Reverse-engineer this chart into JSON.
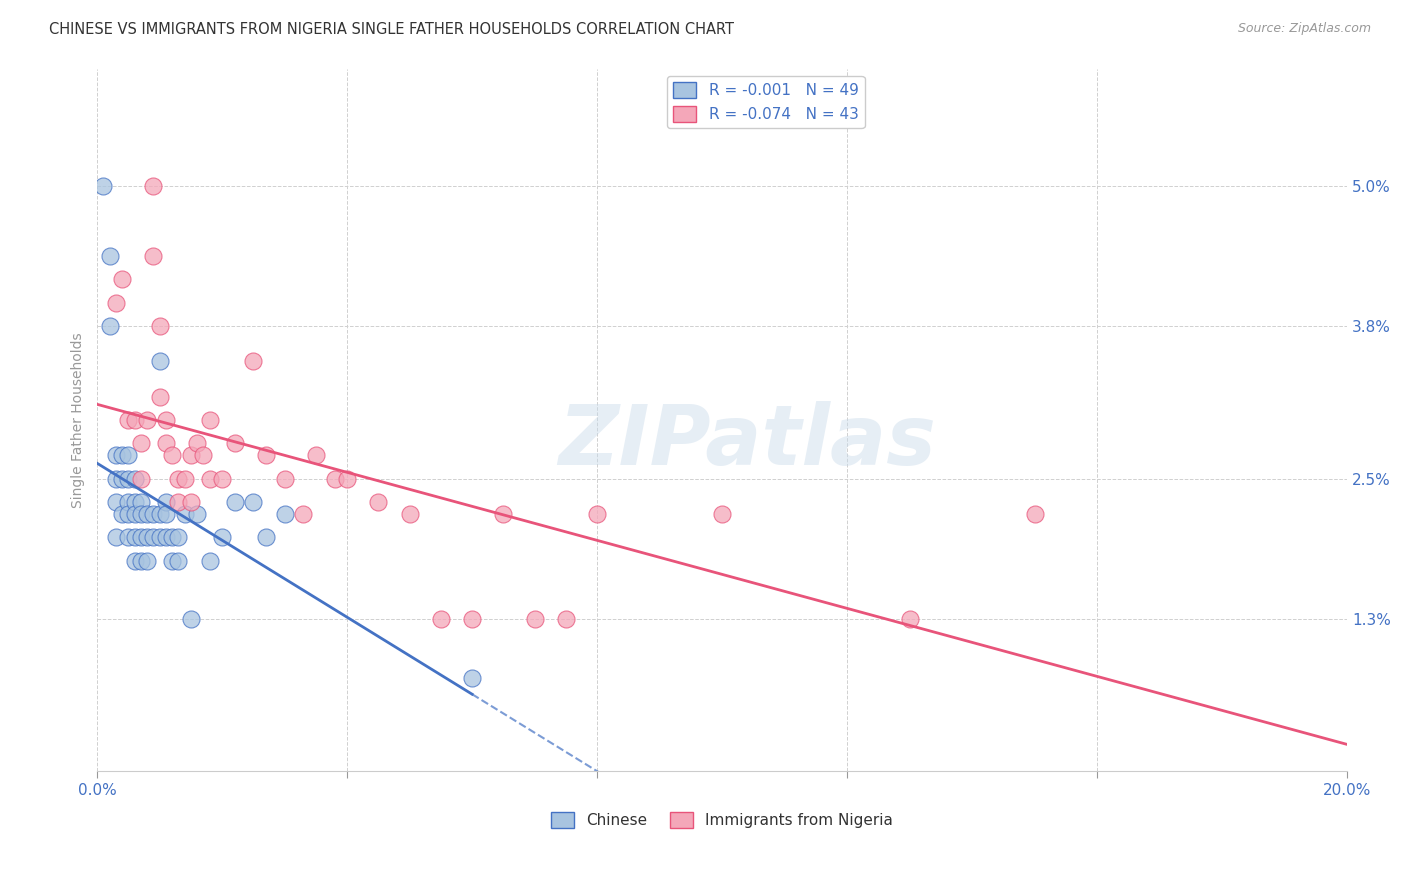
{
  "title": "CHINESE VS IMMIGRANTS FROM NIGERIA SINGLE FATHER HOUSEHOLDS CORRELATION CHART",
  "source": "Source: ZipAtlas.com",
  "ylabel": "Single Father Households",
  "legend_label1": "R = -0.001   N = 49",
  "legend_label2": "R = -0.074   N = 43",
  "legend_label_chinese": "Chinese",
  "legend_label_nigeria": "Immigrants from Nigeria",
  "xlim": [
    0.0,
    0.2
  ],
  "ylim": [
    0.0,
    0.06
  ],
  "color_chinese": "#a8c4e0",
  "color_nigeria": "#f4a7b9",
  "line_color_chinese": "#4472c4",
  "line_color_nigeria": "#e8547a",
  "watermark": "ZIPatlas",
  "chinese_x": [
    0.001,
    0.002,
    0.002,
    0.003,
    0.003,
    0.003,
    0.003,
    0.004,
    0.004,
    0.004,
    0.005,
    0.005,
    0.005,
    0.005,
    0.005,
    0.006,
    0.006,
    0.006,
    0.006,
    0.006,
    0.007,
    0.007,
    0.007,
    0.007,
    0.008,
    0.008,
    0.008,
    0.009,
    0.009,
    0.01,
    0.01,
    0.01,
    0.011,
    0.011,
    0.011,
    0.012,
    0.012,
    0.013,
    0.013,
    0.014,
    0.015,
    0.016,
    0.018,
    0.02,
    0.022,
    0.025,
    0.027,
    0.03,
    0.06
  ],
  "chinese_y": [
    0.05,
    0.044,
    0.038,
    0.027,
    0.025,
    0.023,
    0.02,
    0.027,
    0.025,
    0.022,
    0.027,
    0.025,
    0.023,
    0.022,
    0.02,
    0.025,
    0.023,
    0.022,
    0.02,
    0.018,
    0.023,
    0.022,
    0.02,
    0.018,
    0.022,
    0.02,
    0.018,
    0.022,
    0.02,
    0.035,
    0.022,
    0.02,
    0.023,
    0.022,
    0.02,
    0.02,
    0.018,
    0.02,
    0.018,
    0.022,
    0.013,
    0.022,
    0.018,
    0.02,
    0.023,
    0.023,
    0.02,
    0.022,
    0.008
  ],
  "nigeria_x": [
    0.003,
    0.004,
    0.005,
    0.006,
    0.007,
    0.007,
    0.008,
    0.009,
    0.009,
    0.01,
    0.01,
    0.011,
    0.011,
    0.012,
    0.013,
    0.013,
    0.014,
    0.015,
    0.015,
    0.016,
    0.017,
    0.018,
    0.018,
    0.02,
    0.022,
    0.025,
    0.027,
    0.03,
    0.033,
    0.035,
    0.038,
    0.04,
    0.045,
    0.05,
    0.055,
    0.06,
    0.065,
    0.07,
    0.075,
    0.08,
    0.1,
    0.13,
    0.15
  ],
  "nigeria_y": [
    0.04,
    0.042,
    0.03,
    0.03,
    0.028,
    0.025,
    0.03,
    0.05,
    0.044,
    0.038,
    0.032,
    0.03,
    0.028,
    0.027,
    0.025,
    0.023,
    0.025,
    0.027,
    0.023,
    0.028,
    0.027,
    0.03,
    0.025,
    0.025,
    0.028,
    0.035,
    0.027,
    0.025,
    0.022,
    0.027,
    0.025,
    0.025,
    0.023,
    0.022,
    0.013,
    0.013,
    0.022,
    0.013,
    0.013,
    0.022,
    0.022,
    0.013,
    0.022
  ],
  "bg_color": "#ffffff",
  "grid_color": "#d0d0d0",
  "tick_color": "#4472c4",
  "title_color": "#333333",
  "r_value_color": "#4472c4"
}
